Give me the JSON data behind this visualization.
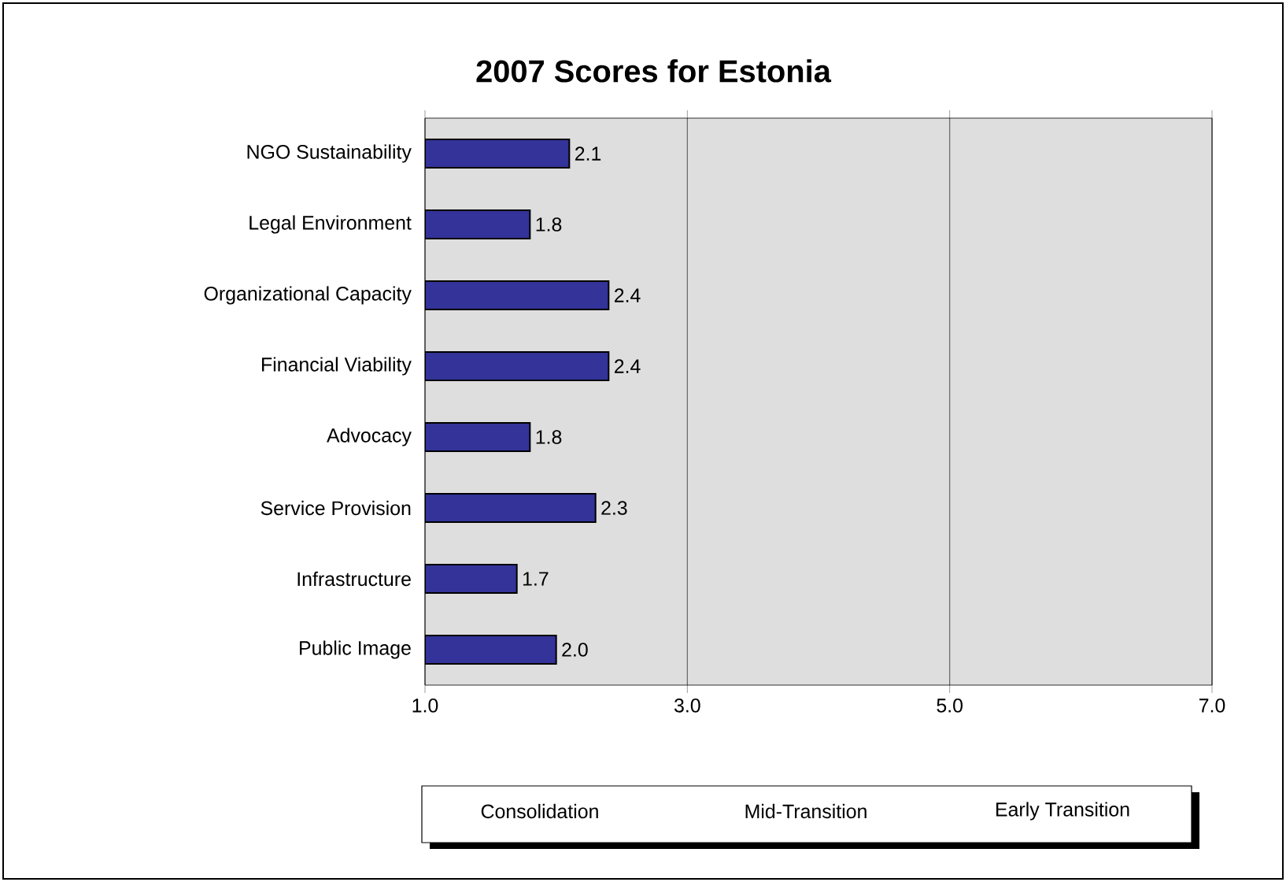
{
  "chart_data": {
    "type": "bar",
    "orientation": "horizontal",
    "title": "2007 Scores for Estonia",
    "categories": [
      "NGO Sustainability",
      "Legal Environment",
      "Organizational Capacity",
      "Financial Viability",
      "Advocacy",
      "Service Provision",
      "Infrastructure",
      "Public Image"
    ],
    "values": [
      2.1,
      1.8,
      2.4,
      2.4,
      1.8,
      2.3,
      1.7,
      2.0
    ],
    "value_labels": [
      "2.1",
      "1.8",
      "2.4",
      "2.4",
      "1.8",
      "2.3",
      "1.7",
      "2.0"
    ],
    "color": "#333399",
    "xlim": [
      1,
      7
    ],
    "xticks": [
      {
        "value": 1,
        "label": "1.0"
      },
      {
        "value": 3,
        "label": "3.0"
      },
      {
        "value": 5,
        "label": "5.0"
      },
      {
        "value": 7,
        "label": "7.0"
      }
    ],
    "grid": "x",
    "annotations": [
      "Consolidation",
      "Mid-Transition",
      "Early Transition"
    ]
  }
}
